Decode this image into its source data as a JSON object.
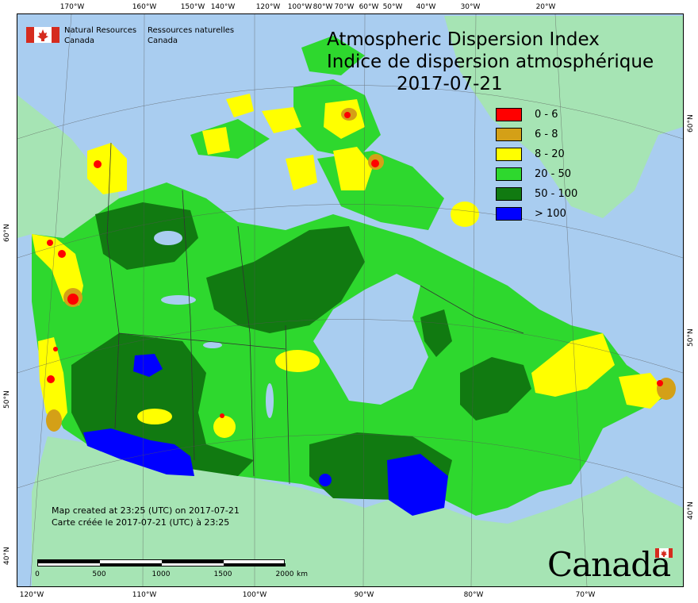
{
  "header": {
    "agency_en_line1": "Natural Resources",
    "agency_en_line2": "Canada",
    "agency_fr_line1": "Ressources naturelles",
    "agency_fr_line2": "Canada"
  },
  "title": {
    "en": "Atmospheric Dispersion Index",
    "fr": "Indice de dispersion atmosphérique",
    "date": "2017-07-21"
  },
  "legend": {
    "items": [
      {
        "label": "0 - 6",
        "color": "#ff0000"
      },
      {
        "label": "6 - 8",
        "color": "#d4a017"
      },
      {
        "label": "8 - 20",
        "color": "#ffff00"
      },
      {
        "label": "20 - 50",
        "color": "#2ed82e"
      },
      {
        "label": "50 - 100",
        "color": "#117a11"
      },
      {
        "label": "> 100",
        "color": "#0000ff"
      }
    ]
  },
  "credits": {
    "line_en": "Map created at 23:25 (UTC) on 2017-07-21",
    "line_fr": "Carte créée le 2017-07-21 (UTC) à 23:25"
  },
  "scale": {
    "labels": [
      "0",
      "500",
      "1000",
      "1500",
      "2000"
    ],
    "unit": "km"
  },
  "graticule": {
    "top": [
      "170°W",
      "160°W",
      "150°W",
      "140°W",
      "120°W",
      "100°W",
      "80°W",
      "70°W",
      "60°W",
      "50°W",
      "40°W",
      "30°W",
      "20°W"
    ],
    "bottom": [
      "120°W",
      "110°W",
      "100°W",
      "90°W",
      "80°W",
      "70°W"
    ],
    "left": [
      "60°N",
      "50°N",
      "40°N"
    ],
    "right": [
      "60°N",
      "50°N",
      "40°N"
    ]
  },
  "wordmark": "Canada",
  "colors": {
    "ocean": "#a9cdf0",
    "land_outside": "#a6e4b4",
    "greenland": "#a6e4b4"
  }
}
